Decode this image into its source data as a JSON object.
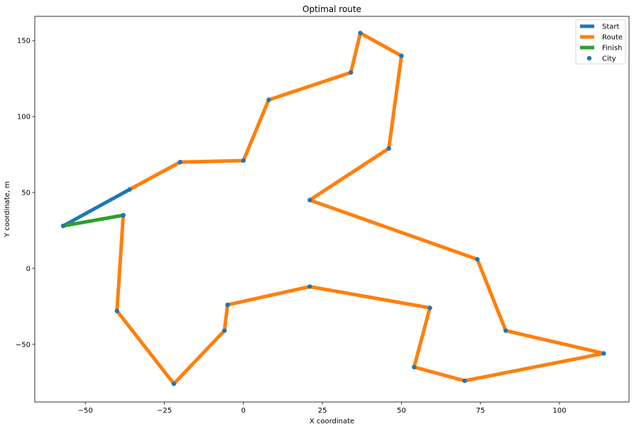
{
  "chart_data": {
    "type": "line",
    "title": "Optimal route",
    "xlabel": "X coordinate",
    "ylabel": "Y coordinate, m",
    "xlim": [
      -66,
      122
    ],
    "ylim": [
      -88,
      166
    ],
    "xticks": [
      -50,
      -25,
      0,
      25,
      50,
      75,
      100
    ],
    "yticks": [
      -50,
      0,
      50,
      100,
      150
    ],
    "xtick_labels": [
      "−50",
      "−25",
      "0",
      "25",
      "50",
      "75",
      "100"
    ],
    "ytick_labels": [
      "−50",
      "0",
      "50",
      "100",
      "150"
    ],
    "grid": false,
    "legend_position": "top-right",
    "series": [
      {
        "name": "Start",
        "kind": "line",
        "color": "#1f77b4",
        "x": [
          -57,
          -36
        ],
        "y": [
          28,
          52
        ]
      },
      {
        "name": "Route",
        "kind": "line",
        "color": "#ff7f0e",
        "x": [
          -36,
          -20,
          0,
          8,
          34,
          37,
          50,
          46,
          21,
          74,
          83,
          114,
          70,
          54,
          59,
          21,
          -5,
          -6,
          -22,
          -40,
          -38
        ],
        "y": [
          52,
          70,
          71,
          111,
          129,
          155,
          140,
          79,
          45,
          6,
          -41,
          -56,
          -74,
          -65,
          -26,
          -12,
          -24,
          -41,
          -76,
          -28,
          35
        ]
      },
      {
        "name": "Finish",
        "kind": "line",
        "color": "#2ca02c",
        "x": [
          -38,
          -57
        ],
        "y": [
          35,
          28
        ]
      },
      {
        "name": "City",
        "kind": "scatter",
        "color": "#1f77b4",
        "x": [
          -57,
          -36,
          -20,
          0,
          8,
          34,
          37,
          50,
          46,
          21,
          74,
          83,
          114,
          70,
          54,
          59,
          21,
          -5,
          -6,
          -22,
          -40,
          -38
        ],
        "y": [
          28,
          52,
          70,
          71,
          111,
          129,
          155,
          140,
          79,
          45,
          6,
          -41,
          -56,
          -74,
          -65,
          -26,
          -12,
          -24,
          -41,
          -76,
          -28,
          35
        ]
      }
    ]
  }
}
